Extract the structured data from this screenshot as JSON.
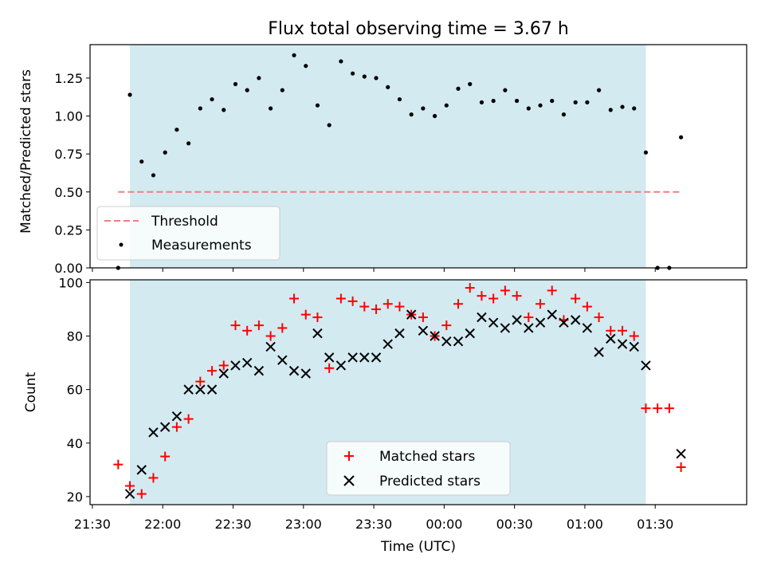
{
  "title": "Flux total observing time = 3.67 h",
  "chart_data": [
    {
      "type": "scatter",
      "ylabel": "Matched/Predicted stars",
      "ylim": [
        0,
        1.47
      ],
      "xlim": [
        "21:29",
        "02:09"
      ],
      "yticks": [
        0.0,
        0.25,
        0.5,
        0.75,
        1.0,
        1.25
      ],
      "ytick_labels": [
        "0.00",
        "0.25",
        "0.50",
        "0.75",
        "1.00",
        "1.25"
      ],
      "grid": false,
      "legend_position": "lower-left",
      "observing_window": {
        "start": "21:46",
        "end": "01:26",
        "color": "#d3eaf1"
      },
      "threshold": {
        "name": "Threshold",
        "value": 0.5,
        "x_start": "21:41",
        "x_end": "01:41",
        "color": "#f08080"
      },
      "series": [
        {
          "name": "Measurements",
          "color": "#000000",
          "x": [
            "21:41",
            "21:46",
            "21:51",
            "21:56",
            "22:01",
            "22:06",
            "22:11",
            "22:16",
            "22:21",
            "22:26",
            "22:31",
            "22:36",
            "22:41",
            "22:46",
            "22:51",
            "22:56",
            "23:01",
            "23:06",
            "23:11",
            "23:16",
            "23:21",
            "23:26",
            "23:31",
            "23:36",
            "23:41",
            "23:46",
            "23:51",
            "23:56",
            "00:01",
            "00:06",
            "00:11",
            "00:16",
            "00:21",
            "00:26",
            "00:31",
            "00:36",
            "00:41",
            "00:46",
            "00:51",
            "00:56",
            "01:01",
            "01:06",
            "01:11",
            "01:16",
            "01:21",
            "01:26",
            "01:31",
            "01:36",
            "01:41"
          ],
          "y": [
            0.0,
            1.14,
            0.7,
            0.61,
            0.76,
            0.91,
            0.82,
            1.05,
            1.11,
            1.04,
            1.21,
            1.17,
            1.25,
            1.05,
            1.17,
            1.4,
            1.33,
            1.07,
            0.94,
            1.36,
            1.28,
            1.26,
            1.25,
            1.19,
            1.11,
            1.01,
            1.05,
            1.0,
            1.07,
            1.18,
            1.21,
            1.09,
            1.1,
            1.17,
            1.1,
            1.05,
            1.07,
            1.1,
            1.01,
            1.09,
            1.09,
            1.17,
            1.04,
            1.06,
            1.05,
            0.76,
            0.0,
            0.0,
            0.86
          ]
        }
      ]
    },
    {
      "type": "scatter",
      "xlabel": "Time (UTC)",
      "ylabel": "Count",
      "ylim": [
        17,
        101
      ],
      "xlim": [
        "21:29",
        "02:09"
      ],
      "yticks": [
        20,
        40,
        60,
        80,
        100
      ],
      "xticks": [
        "21:30",
        "22:00",
        "22:30",
        "23:00",
        "23:30",
        "00:00",
        "00:30",
        "01:00",
        "01:30"
      ],
      "grid": false,
      "legend_position": "lower-center",
      "series": [
        {
          "name": "Matched stars",
          "marker": "plus",
          "color": "#ff0000",
          "x": [
            "21:41",
            "21:46",
            "21:51",
            "21:56",
            "22:01",
            "22:06",
            "22:11",
            "22:16",
            "22:21",
            "22:26",
            "22:31",
            "22:36",
            "22:41",
            "22:46",
            "22:51",
            "22:56",
            "23:01",
            "23:06",
            "23:11",
            "23:16",
            "23:21",
            "23:26",
            "23:31",
            "23:36",
            "23:41",
            "23:46",
            "23:51",
            "23:56",
            "00:01",
            "00:06",
            "00:11",
            "00:16",
            "00:21",
            "00:26",
            "00:31",
            "00:36",
            "00:41",
            "00:46",
            "00:51",
            "00:56",
            "01:01",
            "01:06",
            "01:11",
            "01:16",
            "01:21",
            "01:26",
            "01:31",
            "01:36",
            "01:41"
          ],
          "y": [
            32,
            24,
            21,
            27,
            35,
            46,
            49,
            63,
            67,
            69,
            84,
            82,
            84,
            80,
            83,
            94,
            88,
            87,
            68,
            94,
            93,
            91,
            90,
            92,
            91,
            88,
            87,
            80,
            84,
            92,
            98,
            95,
            94,
            97,
            95,
            87,
            92,
            97,
            86,
            94,
            91,
            87,
            82,
            82,
            80,
            53,
            53,
            53,
            31
          ]
        },
        {
          "name": "Predicted stars",
          "marker": "x",
          "color": "#000000",
          "x": [
            "21:46",
            "21:51",
            "21:56",
            "22:01",
            "22:06",
            "22:11",
            "22:16",
            "22:21",
            "22:26",
            "22:31",
            "22:36",
            "22:41",
            "22:46",
            "22:51",
            "22:56",
            "23:01",
            "23:06",
            "23:11",
            "23:16",
            "23:21",
            "23:26",
            "23:31",
            "23:36",
            "23:41",
            "23:46",
            "23:51",
            "23:56",
            "00:01",
            "00:06",
            "00:11",
            "00:16",
            "00:21",
            "00:26",
            "00:31",
            "00:36",
            "00:41",
            "00:46",
            "00:51",
            "00:56",
            "01:01",
            "01:06",
            "01:11",
            "01:16",
            "01:21",
            "01:26",
            "01:41"
          ],
          "y": [
            21,
            30,
            44,
            46,
            50,
            60,
            60,
            60,
            66,
            69,
            70,
            67,
            76,
            71,
            67,
            66,
            81,
            72,
            69,
            72,
            72,
            72,
            77,
            81,
            88,
            82,
            80,
            78,
            78,
            81,
            87,
            85,
            83,
            86,
            83,
            85,
            88,
            85,
            86,
            83,
            74,
            79,
            77,
            76,
            69,
            36
          ]
        }
      ]
    }
  ]
}
